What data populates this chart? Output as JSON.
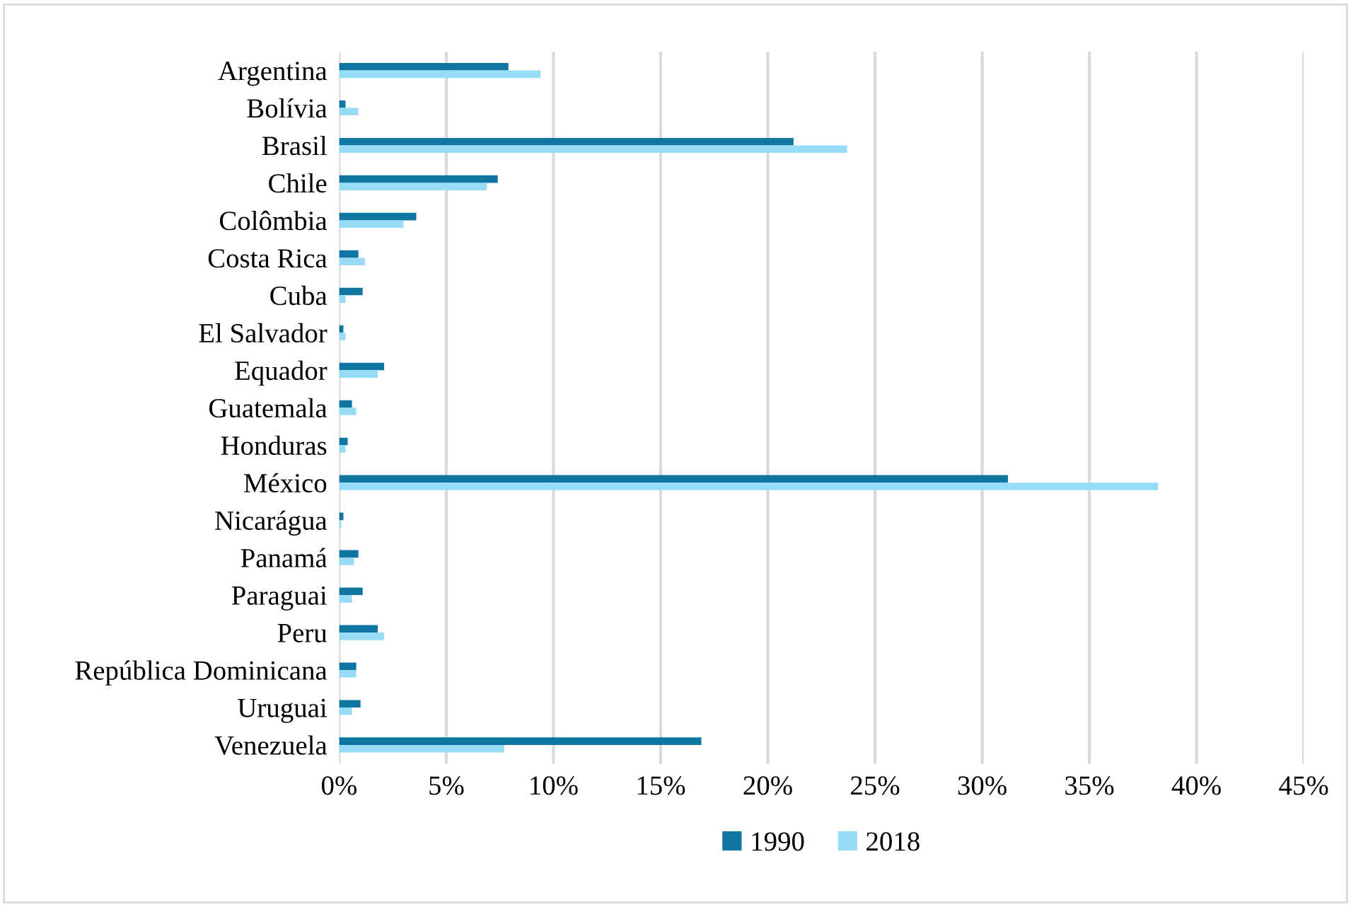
{
  "chart_data": {
    "type": "bar",
    "orientation": "horizontal",
    "categories": [
      "Argentina",
      "Bolívia",
      "Brasil",
      "Chile",
      "Colômbia",
      "Costa Rica",
      "Cuba",
      "El Salvador",
      "Equador",
      "Guatemala",
      "Honduras",
      "México",
      "Nicarágua",
      "Panamá",
      "Paraguai",
      "Peru",
      "República Dominicana",
      "Uruguai",
      "Venezuela"
    ],
    "series": [
      {
        "name": "1990",
        "color": "#0e76a1",
        "values": [
          7.9,
          0.3,
          21.2,
          7.4,
          3.6,
          0.9,
          1.1,
          0.2,
          2.1,
          0.6,
          0.4,
          31.2,
          0.2,
          0.9,
          1.1,
          1.8,
          0.8,
          1.0,
          16.9
        ]
      },
      {
        "name": "2018",
        "color": "#97dbf7",
        "values": [
          9.4,
          0.9,
          23.7,
          6.9,
          3.0,
          1.2,
          0.3,
          0.3,
          1.8,
          0.8,
          0.3,
          38.2,
          0.1,
          0.7,
          0.6,
          2.1,
          0.8,
          0.6,
          7.7
        ]
      }
    ],
    "xlim": [
      0,
      45
    ],
    "xticks": [
      {
        "value": 0,
        "label": "0%"
      },
      {
        "value": 5,
        "label": "5%"
      },
      {
        "value": 10,
        "label": "10%"
      },
      {
        "value": 15,
        "label": "15%"
      },
      {
        "value": 20,
        "label": "20%"
      },
      {
        "value": 25,
        "label": "25%"
      },
      {
        "value": 30,
        "label": "30%"
      },
      {
        "value": 35,
        "label": "35%"
      },
      {
        "value": 40,
        "label": "40%"
      },
      {
        "value": 45,
        "label": "45%"
      }
    ],
    "grid": "x",
    "legend": "bottom"
  }
}
